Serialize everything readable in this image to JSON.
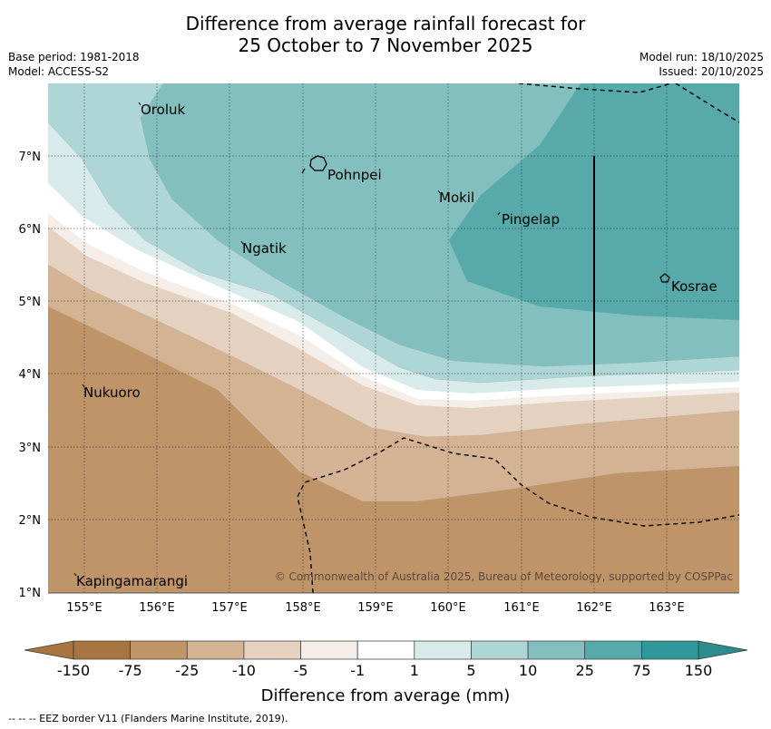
{
  "title": {
    "line1": "Difference from average rainfall forecast for",
    "line2": "25 October to 7 November 2025"
  },
  "meta": {
    "base_period": "Base period: 1981-2018",
    "model": "Model: ACCESS-S2",
    "model_run": "Model run: 18/10/2025",
    "issued": "Issued: 20/10/2025"
  },
  "axes": {
    "lon_labels": [
      "155°E",
      "156°E",
      "157°E",
      "158°E",
      "159°E",
      "160°E",
      "161°E",
      "162°E",
      "163°E"
    ],
    "lat_labels": [
      "7°N",
      "6°N",
      "5°N",
      "4°N",
      "3°N",
      "2°N",
      "1°N"
    ]
  },
  "places": {
    "oroluk": "Oroluk",
    "pohnpei": "Pohnpei",
    "mokil": "Mokil",
    "pingelap": "Pingelap",
    "ngatik": "Ngatik",
    "kosrae": "Kosrae",
    "nukuoro": "Nukuoro",
    "kapingamarangi": "Kapingamarangi"
  },
  "copyright": "© Commonwealth of Australia 2025, Bureau of Meteorology, supported by COSPPac",
  "colorbar": {
    "ticks": [
      "-150",
      "-75",
      "-25",
      "-10",
      "-5",
      "-1",
      "1",
      "5",
      "10",
      "25",
      "75",
      "150"
    ],
    "colors": [
      "#a87540",
      "#c09469",
      "#d3b394",
      "#e4d1c0",
      "#f5ede7",
      "#ffffff",
      "#d8eae9",
      "#afd6d6",
      "#84bfbf",
      "#58a9a9",
      "#30979a"
    ],
    "label": "Difference from average (mm)"
  },
  "footnote": "--  --  -- EEZ border V11 (Flanders Marine Institute, 2019)."
}
